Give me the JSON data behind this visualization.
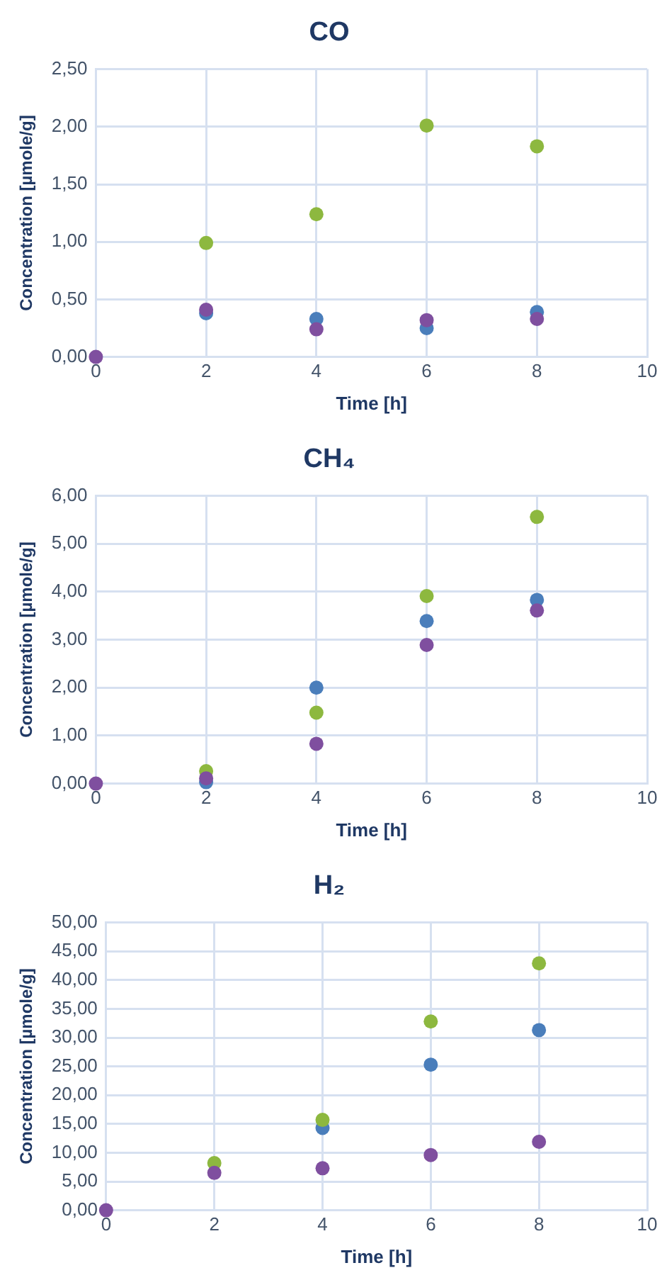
{
  "chart_data": [
    {
      "type": "scatter",
      "title": "CO",
      "xlabel": "Time [h]",
      "ylabel": "Concentration [µmole/g]",
      "x": [
        0,
        2,
        4,
        6,
        8
      ],
      "xlim": [
        0,
        10
      ],
      "xticks": [
        0,
        2,
        4,
        6,
        8,
        10
      ],
      "ylim": [
        0,
        2.5
      ],
      "yticks": [
        {
          "value": 0,
          "label": "0,00"
        },
        {
          "value": 0.5,
          "label": "0,50"
        },
        {
          "value": 1,
          "label": "1,00"
        },
        {
          "value": 1.5,
          "label": "1,50"
        },
        {
          "value": 2,
          "label": "2,00"
        },
        {
          "value": 2.5,
          "label": "2,50"
        }
      ],
      "grid": true,
      "legend": false,
      "marker": "circle",
      "series": [
        {
          "color": "#4a7ebb",
          "values": [
            null,
            0.38,
            0.33,
            0.25,
            0.39
          ]
        },
        {
          "color": "#8db83f",
          "values": [
            null,
            0.99,
            1.24,
            2.01,
            1.83
          ]
        },
        {
          "color": "#7f4f9f",
          "values": [
            0,
            0.41,
            0.24,
            0.32,
            0.33
          ]
        }
      ]
    },
    {
      "type": "scatter",
      "title": "CH₄",
      "xlabel": "Time [h]",
      "ylabel": "Concentration [µmole/g]",
      "x": [
        0,
        2,
        4,
        6,
        8
      ],
      "xlim": [
        0,
        10
      ],
      "xticks": [
        0,
        2,
        4,
        6,
        8,
        10
      ],
      "ylim": [
        0,
        6
      ],
      "yticks": [
        {
          "value": 0,
          "label": "0,00"
        },
        {
          "value": 1,
          "label": "1,00"
        },
        {
          "value": 2,
          "label": "2,00"
        },
        {
          "value": 3,
          "label": "3,00"
        },
        {
          "value": 4,
          "label": "4,00"
        },
        {
          "value": 5,
          "label": "5,00"
        },
        {
          "value": 6,
          "label": "6,00"
        }
      ],
      "grid": true,
      "legend": false,
      "marker": "circle",
      "series": [
        {
          "color": "#4a7ebb",
          "values": [
            null,
            0.03,
            2.0,
            3.39,
            3.83
          ]
        },
        {
          "color": "#8db83f",
          "values": [
            null,
            0.26,
            1.48,
            3.91,
            5.56
          ]
        },
        {
          "color": "#7f4f9f",
          "values": [
            0,
            0.11,
            0.83,
            2.89,
            3.61
          ]
        }
      ]
    },
    {
      "type": "scatter",
      "title": "H₂",
      "xlabel": "Time [h]",
      "ylabel": "Concentration [µmole/g]",
      "x": [
        0,
        2,
        4,
        6,
        8
      ],
      "xlim": [
        0,
        10
      ],
      "xticks": [
        0,
        2,
        4,
        6,
        8,
        10
      ],
      "ylim": [
        0,
        50
      ],
      "yticks": [
        {
          "value": 0,
          "label": "0,00"
        },
        {
          "value": 5,
          "label": "5,00"
        },
        {
          "value": 10,
          "label": "10,00"
        },
        {
          "value": 15,
          "label": "15,00"
        },
        {
          "value": 20,
          "label": "20,00"
        },
        {
          "value": 25,
          "label": "25,00"
        },
        {
          "value": 30,
          "label": "30,00"
        },
        {
          "value": 35,
          "label": "35,00"
        },
        {
          "value": 40,
          "label": "40,00"
        },
        {
          "value": 45,
          "label": "45,00"
        },
        {
          "value": 50,
          "label": "50,00"
        }
      ],
      "grid": true,
      "legend": false,
      "marker": "circle",
      "series": [
        {
          "color": "#4a7ebb",
          "values": [
            null,
            null,
            14.3,
            25.3,
            31.3
          ]
        },
        {
          "color": "#8db83f",
          "values": [
            null,
            8.2,
            15.7,
            32.8,
            42.9
          ]
        },
        {
          "color": "#7f4f9f",
          "values": [
            0,
            6.5,
            7.3,
            9.6,
            11.9
          ]
        }
      ]
    }
  ]
}
